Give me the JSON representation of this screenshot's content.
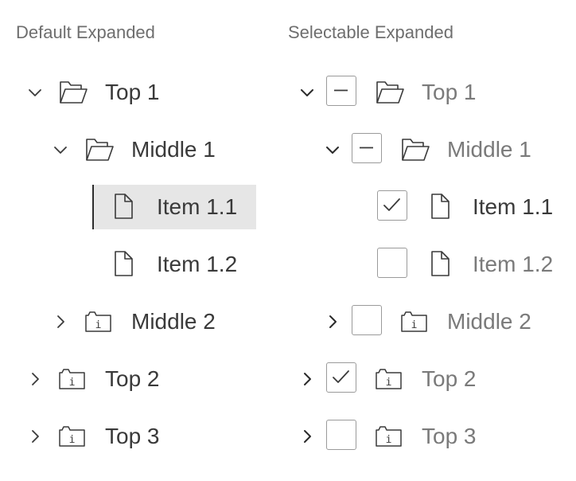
{
  "panels": {
    "default": {
      "title": "Default Expanded",
      "rows": [
        {
          "label": "Top 1",
          "icon": "folder-open-icon",
          "chevron": "down",
          "selected": false
        },
        {
          "label": "Middle 1",
          "icon": "folder-open-icon",
          "chevron": "down",
          "selected": false
        },
        {
          "label": "Item 1.1",
          "icon": "file-icon",
          "chevron": "none",
          "selected": true
        },
        {
          "label": "Item 1.2",
          "icon": "file-icon",
          "chevron": "none",
          "selected": false
        },
        {
          "label": "Middle 2",
          "icon": "info-folder-icon",
          "chevron": "right",
          "selected": false
        },
        {
          "label": "Top 2",
          "icon": "info-folder-icon",
          "chevron": "right",
          "selected": false
        },
        {
          "label": "Top 3",
          "icon": "info-folder-icon",
          "chevron": "right",
          "selected": false
        }
      ]
    },
    "selectable": {
      "title": "Selectable Expanded",
      "rows": [
        {
          "label": "Top 1",
          "icon": "folder-open-icon",
          "chevron": "down",
          "checkbox": "indeterminate"
        },
        {
          "label": "Middle 1",
          "icon": "folder-open-icon",
          "chevron": "down",
          "checkbox": "indeterminate"
        },
        {
          "label": "Item 1.1",
          "icon": "file-icon",
          "chevron": "none",
          "checkbox": "checked"
        },
        {
          "label": "Item 1.2",
          "icon": "file-icon",
          "chevron": "none",
          "checkbox": "unchecked"
        },
        {
          "label": "Middle 2",
          "icon": "info-folder-icon",
          "chevron": "right",
          "checkbox": "unchecked"
        },
        {
          "label": "Top 2",
          "icon": "info-folder-icon",
          "chevron": "right",
          "checkbox": "checked"
        },
        {
          "label": "Top 3",
          "icon": "info-folder-icon",
          "chevron": "right",
          "checkbox": "unchecked"
        }
      ]
    }
  },
  "colors": {
    "text_dark": "#3a3a3a",
    "text_muted": "#7a7a7a",
    "title": "#6e6e6e",
    "selected_bg": "#e6e6e6",
    "selected_bar": "#2c2c2c",
    "checkbox_border": "#9a9a9a"
  }
}
